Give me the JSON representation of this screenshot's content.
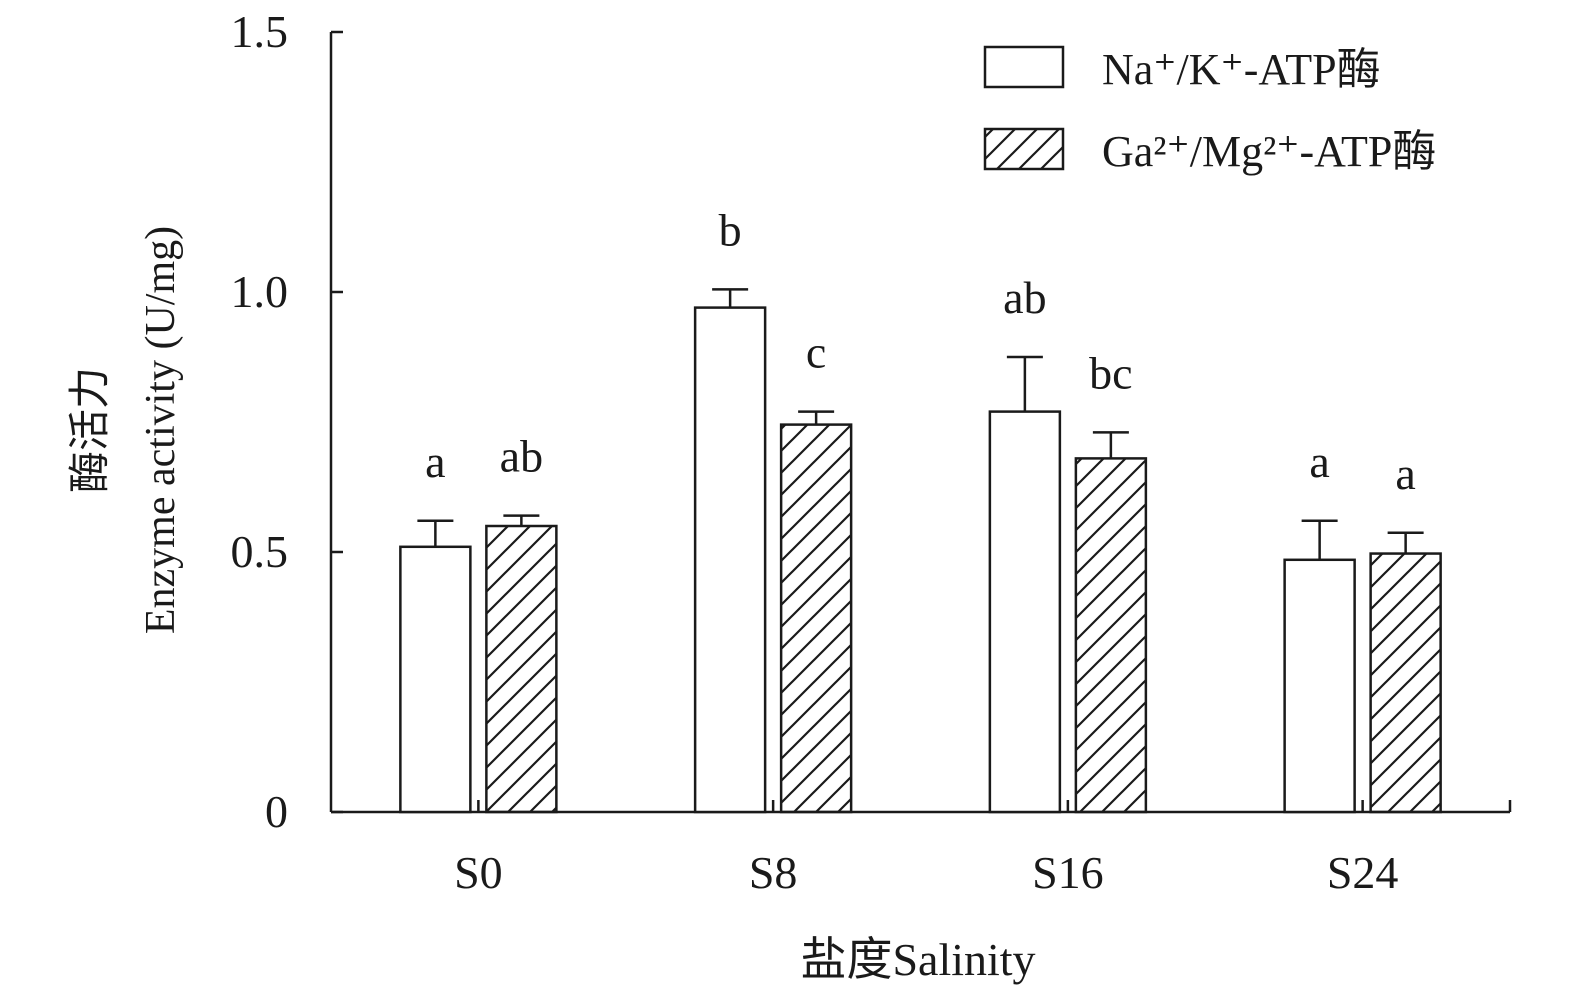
{
  "chart_data": {
    "type": "bar",
    "categories": [
      "S0",
      "S8",
      "S16",
      "S24"
    ],
    "series": [
      {
        "name": "Na⁺/K⁺-ATP酶",
        "values": [
          0.51,
          0.97,
          0.77,
          0.485
        ],
        "errors": [
          0.05,
          0.035,
          0.105,
          0.075
        ],
        "letters": [
          "a",
          "b",
          "ab",
          "a"
        ],
        "pattern": "none"
      },
      {
        "name": "Ga²⁺/Mg²⁺-ATP酶",
        "values": [
          0.55,
          0.745,
          0.68,
          0.497
        ],
        "errors": [
          0.02,
          0.025,
          0.05,
          0.04
        ],
        "letters": [
          "ab",
          "c",
          "bc",
          "a"
        ],
        "pattern": "diagonal-hatch"
      }
    ],
    "ylabel_line1": "酶活力",
    "ylabel_line2": "Enzyme activity (U/mg)",
    "xlabel": "盐度Salinity",
    "ylim": [
      0,
      1.5
    ],
    "yticks": [
      0,
      0.5,
      1.0,
      1.5
    ],
    "ytick_labels": [
      "0",
      "0.5",
      "1.0",
      "1.5"
    ],
    "grid": false,
    "legend_position": "top-right",
    "colors": {
      "stroke": "#1a1a1a",
      "fill": "#ffffff"
    }
  }
}
